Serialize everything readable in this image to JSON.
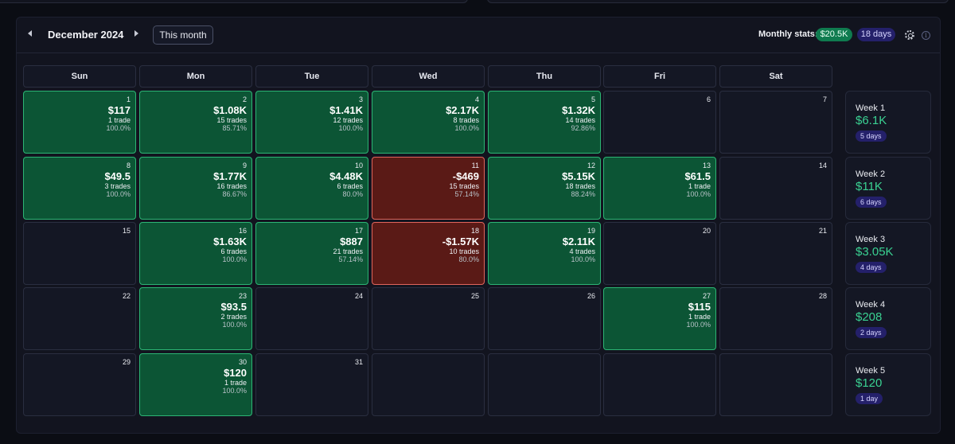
{
  "header": {
    "month_title": "December 2024",
    "this_month_label": "This month",
    "stats_label": "Monthly stats:",
    "monthly_profit": "$20.5K",
    "monthly_days": "18 days",
    "prev_icon": "chevron-left-icon",
    "next_icon": "chevron-right-icon",
    "settings_icon": "gear-icon",
    "info_icon": "info-icon",
    "info_glyph": "i"
  },
  "weekdays": [
    "Sun",
    "Mon",
    "Tue",
    "Wed",
    "Thu",
    "Fri",
    "Sat"
  ],
  "colors": {
    "win_bg": "#0c5535",
    "win_border": "#2cb574",
    "loss_bg": "#5a1a16",
    "loss_border": "#e0655c",
    "profit_text": "#3ad192",
    "days_badge": "#24206a"
  },
  "days": [
    {
      "date": "1",
      "status": "win",
      "pnl": "$117",
      "trades": "1 trade",
      "rate": "100.0%"
    },
    {
      "date": "2",
      "status": "win",
      "pnl": "$1.08K",
      "trades": "15 trades",
      "rate": "85.71%"
    },
    {
      "date": "3",
      "status": "win",
      "pnl": "$1.41K",
      "trades": "12 trades",
      "rate": "100.0%"
    },
    {
      "date": "4",
      "status": "win",
      "pnl": "$2.17K",
      "trades": "8 trades",
      "rate": "100.0%"
    },
    {
      "date": "5",
      "status": "win",
      "pnl": "$1.32K",
      "trades": "14 trades",
      "rate": "92.86%"
    },
    {
      "date": "6",
      "status": "none"
    },
    {
      "date": "7",
      "status": "none"
    },
    {
      "date": "8",
      "status": "win",
      "pnl": "$49.5",
      "trades": "3 trades",
      "rate": "100.0%"
    },
    {
      "date": "9",
      "status": "win",
      "pnl": "$1.77K",
      "trades": "16 trades",
      "rate": "86.67%"
    },
    {
      "date": "10",
      "status": "win",
      "pnl": "$4.48K",
      "trades": "6 trades",
      "rate": "80.0%"
    },
    {
      "date": "11",
      "status": "loss",
      "pnl": "-$469",
      "trades": "15 trades",
      "rate": "57.14%"
    },
    {
      "date": "12",
      "status": "win",
      "pnl": "$5.15K",
      "trades": "18 trades",
      "rate": "88.24%"
    },
    {
      "date": "13",
      "status": "win",
      "pnl": "$61.5",
      "trades": "1 trade",
      "rate": "100.0%"
    },
    {
      "date": "14",
      "status": "none"
    },
    {
      "date": "15",
      "status": "none"
    },
    {
      "date": "16",
      "status": "win",
      "pnl": "$1.63K",
      "trades": "6 trades",
      "rate": "100.0%"
    },
    {
      "date": "17",
      "status": "win",
      "pnl": "$887",
      "trades": "21 trades",
      "rate": "57.14%"
    },
    {
      "date": "18",
      "status": "loss",
      "pnl": "-$1.57K",
      "trades": "10 trades",
      "rate": "80.0%"
    },
    {
      "date": "19",
      "status": "win",
      "pnl": "$2.11K",
      "trades": "4 trades",
      "rate": "100.0%"
    },
    {
      "date": "20",
      "status": "none"
    },
    {
      "date": "21",
      "status": "none"
    },
    {
      "date": "22",
      "status": "none"
    },
    {
      "date": "23",
      "status": "win",
      "pnl": "$93.5",
      "trades": "2 trades",
      "rate": "100.0%"
    },
    {
      "date": "24",
      "status": "none"
    },
    {
      "date": "25",
      "status": "none"
    },
    {
      "date": "26",
      "status": "none"
    },
    {
      "date": "27",
      "status": "win",
      "pnl": "$115",
      "trades": "1 trade",
      "rate": "100.0%"
    },
    {
      "date": "28",
      "status": "none"
    },
    {
      "date": "29",
      "status": "none"
    },
    {
      "date": "30",
      "status": "win",
      "pnl": "$120",
      "trades": "1 trade",
      "rate": "100.0%"
    },
    {
      "date": "31",
      "status": "none"
    },
    {
      "date": "",
      "status": "empty"
    },
    {
      "date": "",
      "status": "empty"
    },
    {
      "date": "",
      "status": "empty"
    },
    {
      "date": "",
      "status": "empty"
    }
  ],
  "weeks": [
    {
      "label": "Week 1",
      "total": "$6.1K",
      "days": "5 days"
    },
    {
      "label": "Week 2",
      "total": "$11K",
      "days": "6 days"
    },
    {
      "label": "Week 3",
      "total": "$3.05K",
      "days": "4 days"
    },
    {
      "label": "Week 4",
      "total": "$208",
      "days": "2 days"
    },
    {
      "label": "Week 5",
      "total": "$120",
      "days": "1 day"
    }
  ]
}
